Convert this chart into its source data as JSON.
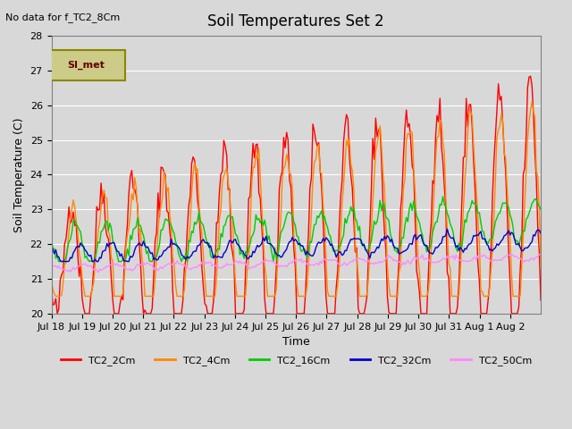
{
  "title": "Soil Temperatures Set 2",
  "no_data_text": "No data for f_TC2_8Cm",
  "xlabel": "Time",
  "ylabel": "Soil Temperature (C)",
  "ylim": [
    20.0,
    28.0
  ],
  "yticks": [
    20.0,
    21.0,
    22.0,
    23.0,
    24.0,
    25.0,
    26.0,
    27.0,
    28.0
  ],
  "background_color": "#e8e8e8",
  "plot_bg_color": "#d8d8d8",
  "legend_box_color": "#cccc88",
  "legend_box_edge": "#888800",
  "legend_label": "SI_met",
  "series": [
    {
      "label": "TC2_2Cm",
      "color": "#ff0000"
    },
    {
      "label": "TC2_4Cm",
      "color": "#ff8800"
    },
    {
      "label": "TC2_16Cm",
      "color": "#00cc00"
    },
    {
      "label": "TC2_32Cm",
      "color": "#0000cc"
    },
    {
      "label": "TC2_50Cm",
      "color": "#ff88ff"
    }
  ],
  "xtick_labels": [
    "Jul 18",
    "Jul 19",
    "Jul 20",
    "Jul 21",
    "Jul 22",
    "Jul 23",
    "Jul 24",
    "Jul 25",
    "Jul 26",
    "Jul 27",
    "Jul 28",
    "Jul 29",
    "Jul 30",
    "Jul 31",
    "Aug 1",
    "Aug 2"
  ],
  "n_points": 336,
  "days": 16
}
